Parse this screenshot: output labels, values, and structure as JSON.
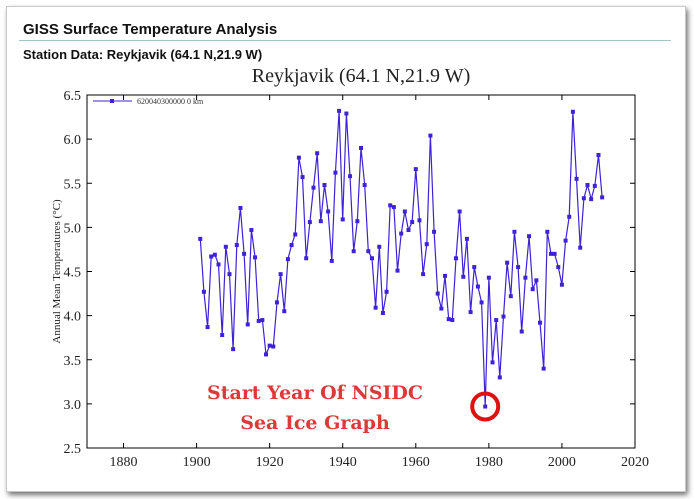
{
  "header": {
    "site_title": "GISS Surface Temperature Analysis",
    "station_line": "Station Data: Reykjavik (64.1 N,21.9 W)"
  },
  "annotation": {
    "line1": "Start Year Of NSIDC",
    "line2": "Sea Ice Graph",
    "marker_year": 1979,
    "marker_value": 2.97
  },
  "colors": {
    "series": "#3d22d9",
    "annotation_fill": "#e03838",
    "annotation_outline": "#ffffff",
    "circle": "#e01010"
  },
  "chart_data": {
    "type": "line",
    "title": "Reykjavik (64.1 N,21.9 W)",
    "xlabel": "",
    "ylabel": "Annual Mean Temperatures (°C)",
    "xlim": [
      1870,
      2020
    ],
    "ylim": [
      2.5,
      6.5
    ],
    "xticks": [
      1880,
      1900,
      1920,
      1940,
      1960,
      1980,
      2000,
      2020
    ],
    "yticks": [
      2.5,
      3.0,
      3.5,
      4.0,
      4.5,
      5.0,
      5.5,
      6.0,
      6.5
    ],
    "grid": false,
    "legend": "top-left",
    "series": [
      {
        "name": "620040300000 0 km",
        "x": [
          1901,
          1902,
          1903,
          1904,
          1905,
          1906,
          1907,
          1908,
          1909,
          1910,
          1911,
          1912,
          1913,
          1914,
          1915,
          1916,
          1917,
          1918,
          1919,
          1920,
          1921,
          1922,
          1923,
          1924,
          1925,
          1926,
          1927,
          1928,
          1929,
          1930,
          1931,
          1932,
          1933,
          1934,
          1935,
          1936,
          1937,
          1938,
          1939,
          1940,
          1941,
          1942,
          1943,
          1944,
          1945,
          1946,
          1947,
          1948,
          1949,
          1950,
          1951,
          1952,
          1953,
          1954,
          1955,
          1956,
          1957,
          1958,
          1959,
          1960,
          1961,
          1962,
          1963,
          1964,
          1965,
          1966,
          1967,
          1968,
          1969,
          1970,
          1971,
          1972,
          1973,
          1974,
          1975,
          1976,
          1977,
          1978,
          1979,
          1980,
          1981,
          1982,
          1983,
          1984,
          1985,
          1986,
          1987,
          1988,
          1989,
          1990,
          1991,
          1992,
          1993,
          1994,
          1995,
          1996,
          1997,
          1998,
          1999,
          2000,
          2001,
          2002,
          2003,
          2004,
          2005,
          2006,
          2007,
          2008,
          2009,
          2010,
          2011
        ],
        "values": [
          4.87,
          4.27,
          3.87,
          4.67,
          4.69,
          4.58,
          3.78,
          4.78,
          4.47,
          3.62,
          4.8,
          5.22,
          4.7,
          3.9,
          4.97,
          4.66,
          3.94,
          3.95,
          3.56,
          3.66,
          3.65,
          4.15,
          4.47,
          4.05,
          4.64,
          4.8,
          4.92,
          5.79,
          5.57,
          4.65,
          5.06,
          5.45,
          5.84,
          5.07,
          5.48,
          5.18,
          4.62,
          5.62,
          6.32,
          5.09,
          6.29,
          5.58,
          4.73,
          5.07,
          5.9,
          5.48,
          4.73,
          4.65,
          4.09,
          4.78,
          4.03,
          4.27,
          5.25,
          5.23,
          4.51,
          4.93,
          5.18,
          4.97,
          5.06,
          5.66,
          5.08,
          4.47,
          4.81,
          6.04,
          4.95,
          4.25,
          4.08,
          4.45,
          3.96,
          3.95,
          4.65,
          5.18,
          4.44,
          4.87,
          4.04,
          4.55,
          4.33,
          4.15,
          2.97,
          4.43,
          3.47,
          3.95,
          3.3,
          3.99,
          4.6,
          4.22,
          4.95,
          4.55,
          3.82,
          4.43,
          4.9,
          4.3,
          4.4,
          3.92,
          3.4,
          4.95,
          4.7,
          4.7,
          4.55,
          4.35,
          4.85,
          5.12,
          6.31,
          5.55,
          4.77,
          5.33,
          5.48,
          5.32,
          5.47,
          5.82,
          5.34
        ]
      }
    ]
  }
}
